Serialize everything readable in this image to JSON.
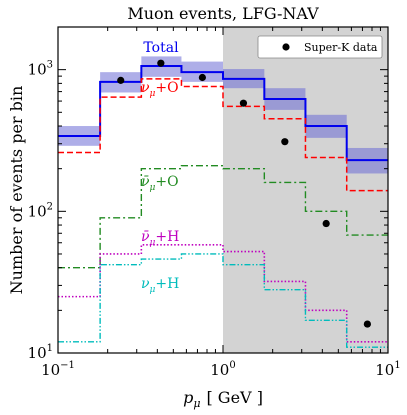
{
  "chart_data": {
    "type": "line",
    "title": "Muon events, LFG-NAV",
    "xlabel_var": "p",
    "xlabel_sub": "μ",
    "xlabel_unit": "[ GeV ]",
    "ylabel": "Number of events per bin",
    "x_scale": "log",
    "y_scale": "log",
    "xlim": [
      0.1,
      10
    ],
    "ylim": [
      10,
      2000
    ],
    "x_ticks": [
      {
        "value": 0.1,
        "base": "10",
        "exp": "−1"
      },
      {
        "value": 1,
        "base": "10",
        "exp": "0"
      },
      {
        "value": 10,
        "base": "10",
        "exp": "1"
      }
    ],
    "y_ticks": [
      {
        "value": 10,
        "base": "10",
        "exp": "1"
      },
      {
        "value": 100,
        "base": "10",
        "exp": "2"
      },
      {
        "value": 1000,
        "base": "10",
        "exp": "3"
      }
    ],
    "shaded_region": {
      "x_from": 1,
      "x_to": 10,
      "color": "#d3d3d3"
    },
    "bin_edges": [
      0.1,
      0.18,
      0.32,
      0.56,
      1.0,
      1.78,
      3.16,
      5.62,
      10.0
    ],
    "series": [
      {
        "name": "Total",
        "color": "#0000ee",
        "style": "solid",
        "values": [
          340,
          820,
          1060,
          960,
          860,
          620,
          400,
          230
        ],
        "band_low": [
          290,
          690,
          890,
          820,
          740,
          520,
          330,
          185
        ],
        "band_high": [
          400,
          960,
          1240,
          1140,
          1010,
          740,
          480,
          280
        ]
      },
      {
        "name_main": "ν",
        "name_sub": "μ",
        "name_suffix": "+O",
        "color": "#ff0000",
        "style": "dashed",
        "values": [
          260,
          640,
          860,
          760,
          550,
          450,
          240,
          140
        ]
      },
      {
        "name_main": "ν̄",
        "name_sub": "μ",
        "name_suffix": "+O",
        "color": "#228b22",
        "style": "dashdot",
        "values": [
          40,
          90,
          200,
          210,
          200,
          160,
          100,
          68
        ]
      },
      {
        "name_main": "ν̄",
        "name_sub": "μ",
        "name_suffix": "+H",
        "color": "#bf00bf",
        "style": "dotted",
        "values": [
          25,
          50,
          58,
          58,
          52,
          32,
          20,
          12
        ]
      },
      {
        "name_main": "ν",
        "name_sub": "μ",
        "name_suffix": "+H",
        "color": "#00bcbc",
        "style": "dashdotdot",
        "values": [
          12,
          42,
          46,
          50,
          42,
          28,
          17,
          11
        ]
      }
    ],
    "data_points": {
      "name": "Super-K data",
      "x": [
        0.24,
        0.42,
        0.75,
        1.33,
        2.37,
        4.22,
        7.5
      ],
      "y": [
        840,
        1110,
        880,
        580,
        310,
        82,
        16
      ]
    },
    "legend_position": "top-right"
  }
}
